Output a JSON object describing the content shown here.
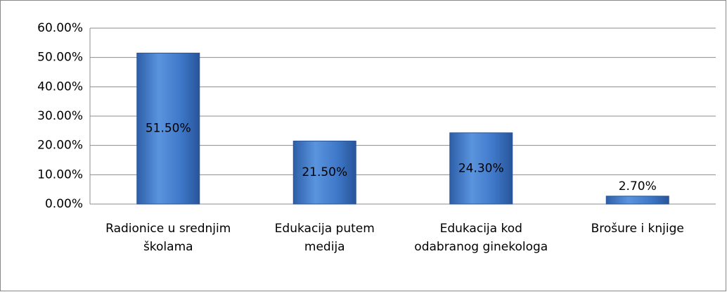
{
  "chart_data": {
    "type": "bar",
    "categories": [
      "Radionice u srednjim školama",
      "Edukacija putem medija",
      "Edukacija kod odabranog ginekologa",
      "Brošure i knjige"
    ],
    "values": [
      51.5,
      21.5,
      24.3,
      2.7
    ],
    "value_labels": [
      "51.50%",
      "21.50%",
      "24.30%",
      "2.70%"
    ],
    "color": "#3f78c8",
    "ylim": [
      0,
      60
    ],
    "yticks": [
      {
        "value": 0,
        "label": "0.00%"
      },
      {
        "value": 10,
        "label": "10.00%"
      },
      {
        "value": 20,
        "label": "20.00%"
      },
      {
        "value": 30,
        "label": "30.00%"
      },
      {
        "value": 40,
        "label": "40.00%"
      },
      {
        "value": 50,
        "label": "50.00%"
      },
      {
        "value": 60,
        "label": "60.00%"
      }
    ],
    "grid": true
  }
}
